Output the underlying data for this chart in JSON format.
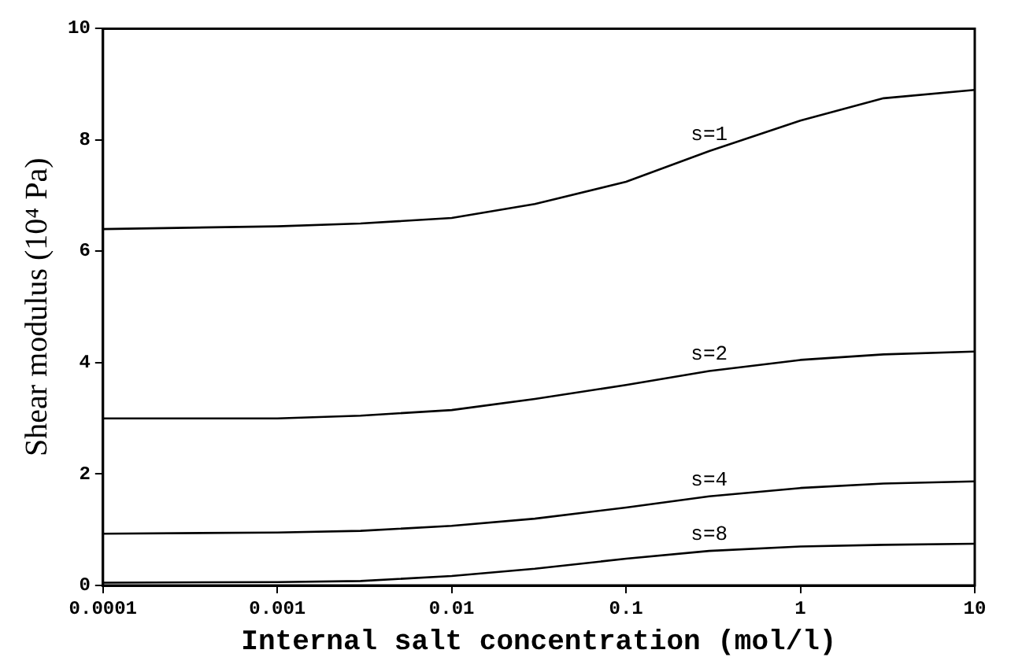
{
  "chart_data": {
    "type": "line",
    "xlabel": "Internal salt concentration (mol/l)",
    "ylabel": "Shear modulus (10⁴ Pa)",
    "x": [
      0.0001,
      0.001,
      0.003,
      0.01,
      0.03,
      0.1,
      0.3,
      1,
      3,
      10
    ],
    "series": [
      {
        "name": "s=1",
        "color": "#000000",
        "values": [
          6.4,
          6.45,
          6.5,
          6.6,
          6.85,
          7.25,
          7.8,
          8.35,
          8.75,
          8.9
        ]
      },
      {
        "name": "s=2",
        "color": "#000000",
        "values": [
          3.0,
          3.0,
          3.05,
          3.15,
          3.35,
          3.6,
          3.85,
          4.05,
          4.15,
          4.2
        ]
      },
      {
        "name": "s=4",
        "color": "#000000",
        "values": [
          0.93,
          0.95,
          0.98,
          1.07,
          1.2,
          1.4,
          1.6,
          1.75,
          1.83,
          1.87
        ]
      },
      {
        "name": "s=8",
        "color": "#000000",
        "values": [
          0.05,
          0.06,
          0.08,
          0.17,
          0.3,
          0.48,
          0.62,
          0.7,
          0.73,
          0.75
        ]
      }
    ],
    "log": "x",
    "xlim": [
      0.0001,
      10
    ],
    "xticks": [
      0.0001,
      0.001,
      0.01,
      0.1,
      1,
      10
    ],
    "ylim": [
      0,
      10
    ],
    "yticks": [
      0,
      2,
      4,
      6,
      8,
      10
    ],
    "grid": false,
    "legend": false,
    "marker": "none",
    "line_style": "solid"
  }
}
